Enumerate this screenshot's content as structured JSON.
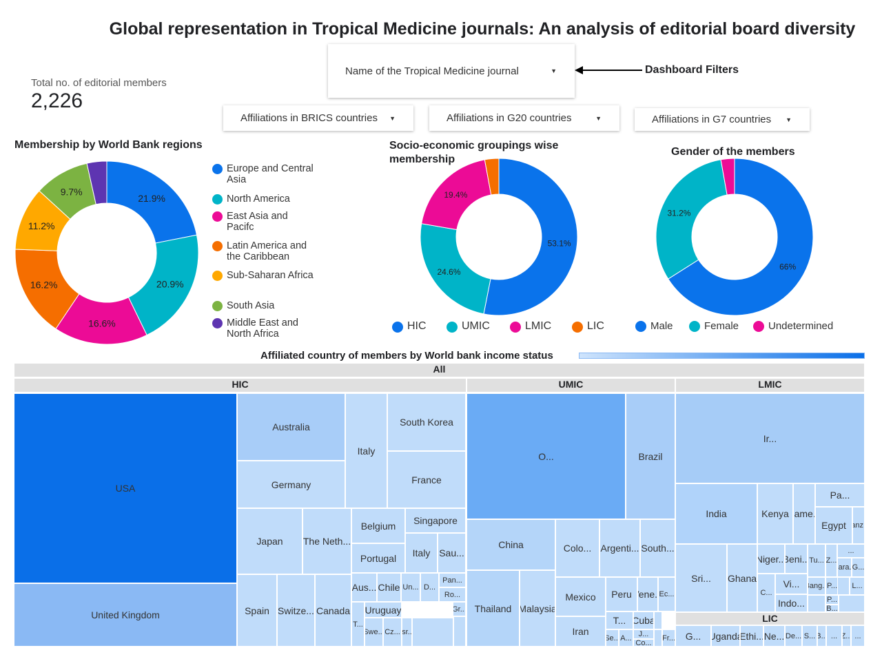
{
  "title": "Global representation in Tropical Medicine journals: An analysis of editorial board diversity",
  "scorecard": {
    "label": "Total no. of editorial members",
    "value": "2,226"
  },
  "filters": {
    "journal": "Name of the Tropical Medicine journal",
    "annotation": "Dashboard Filters",
    "brics": "Affiliations in BRICS countries",
    "g20": "Affiliations in G20 countries",
    "g7": "Affiliations in G7 countries"
  },
  "chart_data": [
    {
      "type": "pie",
      "title": "Membership by World Bank regions",
      "legend_position": "right",
      "slices": [
        {
          "name": "Europe and Central Asia",
          "value": 21.9,
          "label": "21.9%",
          "color": "#0a73eb"
        },
        {
          "name": "North America",
          "value": 20.9,
          "label": "20.9%",
          "color": "#00b4c8"
        },
        {
          "name": "East Asia and Pacifc",
          "value": 16.6,
          "label": "16.6%",
          "color": "#ec0b96"
        },
        {
          "name": "Latin America and the Caribbean",
          "value": 16.2,
          "label": "16.2%",
          "color": "#f56e00"
        },
        {
          "name": "Sub-Saharan Africa",
          "value": 11.2,
          "label": "11.2%",
          "color": "#ffa800"
        },
        {
          "name": "South Asia",
          "value": 9.7,
          "label": "9.7%",
          "color": "#7cb342"
        },
        {
          "name": "Middle East and North Africa",
          "value": 3.5,
          "label": "",
          "color": "#5e35b1"
        }
      ]
    },
    {
      "type": "pie",
      "title": "Socio-economic groupings wise membership",
      "legend_position": "bottom",
      "slices": [
        {
          "name": "HIC",
          "value": 53.1,
          "label": "53.1%",
          "color": "#0a73eb"
        },
        {
          "name": "UMIC",
          "value": 24.6,
          "label": "24.6%",
          "color": "#00b4c8"
        },
        {
          "name": "LMIC",
          "value": 19.4,
          "label": "19.4%",
          "color": "#ec0b96"
        },
        {
          "name": "LIC",
          "value": 2.9,
          "label": "",
          "color": "#f56e00"
        }
      ]
    },
    {
      "type": "pie",
      "title": "Gender of the members",
      "legend_position": "bottom",
      "slices": [
        {
          "name": "Male",
          "value": 66,
          "label": "66%",
          "color": "#0a73eb"
        },
        {
          "name": "Female",
          "value": 31.2,
          "label": "31.2%",
          "color": "#00b4c8"
        },
        {
          "name": "Undetermined",
          "value": 2.8,
          "label": "",
          "color": "#ec0b96"
        }
      ]
    },
    {
      "type": "treemap",
      "title": "Affiliated country of members by World bank income status",
      "root": "All",
      "groups": [
        "HIC",
        "UMIC",
        "LMIC",
        "LIC"
      ],
      "cells": [
        "USA",
        "United Kingdom",
        "Australia",
        "Germany",
        "Italy",
        "South Korea",
        "France",
        "Japan",
        "The Neth...",
        "Belgium",
        "Portugal",
        "Singapore",
        "Italy",
        "Sau...",
        "Spain",
        "Switze...",
        "Canada",
        "Aus...",
        "Chile",
        "Un...",
        "D...",
        "Pan...",
        "Ro...",
        "T...",
        "Uruguay",
        "Swe...",
        "Cz...",
        "Isr...",
        "...",
        "Gr...",
        "O...",
        "Brazil",
        "China",
        "Thailand",
        "Malaysia",
        "Colo...",
        "Argenti...",
        "South...",
        "Mexico",
        "Iran",
        "Peru",
        "Vene...",
        "Ec...",
        "T...",
        "Cuba",
        "Se...",
        "A...",
        "J...",
        "Co...",
        "Fr...",
        "Ir...",
        "India",
        "Kenya",
        "Came...",
        "Pa...",
        "Egypt",
        "Tanz...",
        "Sri...",
        "Ghana",
        "Niger...",
        "Beni...",
        "Tu...",
        "Z...",
        "...",
        "Para...",
        "G...",
        "C...",
        "Vi...",
        "Indo...",
        "Bang...",
        "P...",
        "L...",
        "P...",
        "B...",
        "G...",
        "Uganda",
        "Ethi...",
        "Ne...",
        "De...",
        "S...",
        "B...",
        "...",
        "Z...",
        "...",
        "Y..."
      ]
    }
  ]
}
